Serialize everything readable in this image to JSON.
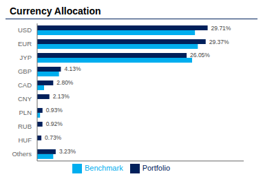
{
  "chart_data": {
    "type": "bar",
    "title": "Currency Allocation",
    "orientation": "horizontal",
    "categories": [
      "USD",
      "EUR",
      "JYP",
      "GBP",
      "CAD",
      "CNY",
      "PLN",
      "RUB",
      "HUF",
      "Others"
    ],
    "series": [
      {
        "name": "Portfolio",
        "color": "#00205B",
        "values": [
          29.71,
          29.37,
          26.05,
          4.13,
          2.8,
          2.13,
          0.93,
          0.92,
          0.73,
          3.23
        ],
        "data_labels": true,
        "value_labels": [
          "29.71%",
          "29.37%",
          "26.05%",
          "4.13%",
          "2.80%",
          "2.13%",
          "0.93%",
          "0.92%",
          "0.73%",
          "3.23%"
        ]
      },
      {
        "name": "Benchmark",
        "color": "#00AEEF",
        "values": [
          27.5,
          28.0,
          27.0,
          3.8,
          1.2,
          0.0,
          0.5,
          0.0,
          0.0,
          2.8
        ]
      }
    ],
    "xlim": [
      0,
      36
    ],
    "tick_labels": "y",
    "grid": false,
    "legend": "bottom"
  }
}
